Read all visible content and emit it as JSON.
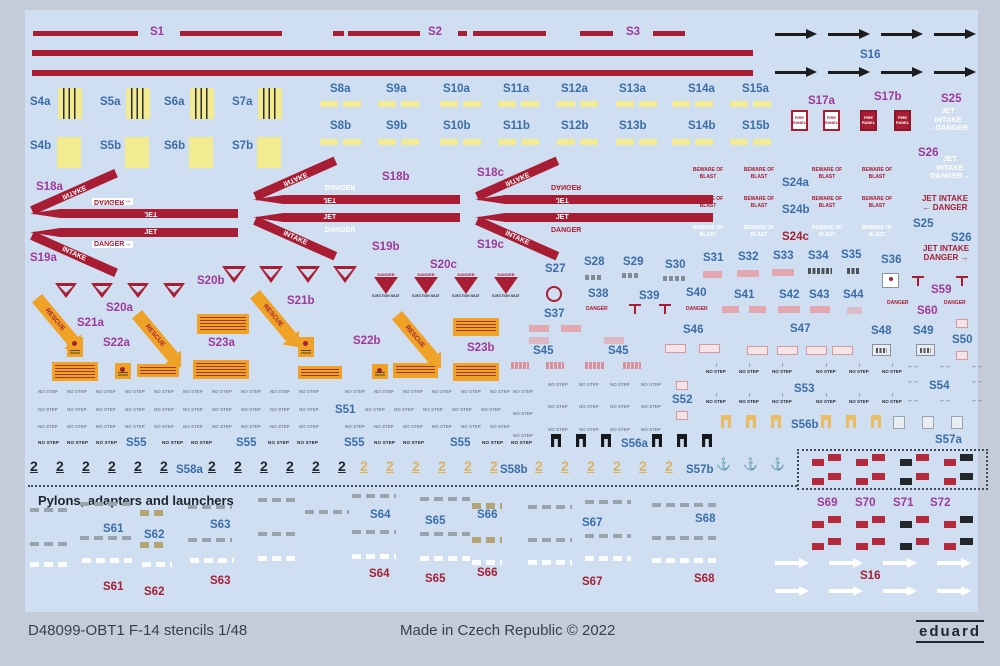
{
  "labels": {
    "s1": "S1",
    "s2": "S2",
    "s3": "S3",
    "s4a": "S4a",
    "s5a": "S5a",
    "s6a": "S6a",
    "s7a": "S7a",
    "s4b": "S4b",
    "s5b": "S5b",
    "s6b": "S6b",
    "s7b": "S7b",
    "s8a": "S8a",
    "s9a": "S9a",
    "s10a": "S10a",
    "s11a": "S11a",
    "s12a": "S12a",
    "s13a": "S13a",
    "s14a": "S14a",
    "s15a": "S15a",
    "s8b": "S8b",
    "s9b": "S9b",
    "s10b": "S10b",
    "s11b": "S11b",
    "s12b": "S12b",
    "s13b": "S13b",
    "s14b": "S14b",
    "s15b": "S15b",
    "s16": "S16",
    "s17a": "S17a",
    "s17b": "S17b",
    "s18a": "S18a",
    "s18b": "S18b",
    "s18c": "S18c",
    "s19a": "S19a",
    "s19b": "S19b",
    "s19c": "S19c",
    "s20a": "S20a",
    "s20b": "S20b",
    "s20c": "S20c",
    "s21a": "S21a",
    "s21b": "S21b",
    "s22a": "S22a",
    "s22b": "S22b",
    "s23a": "S23a",
    "s23b": "S23b",
    "s24a": "S24a",
    "s24b": "S24b",
    "s24c": "S24c",
    "s25": "S25",
    "s26": "S26",
    "s27": "S27",
    "s28": "S28",
    "s29": "S29",
    "s30": "S30",
    "s31": "S31",
    "s32": "S32",
    "s33": "S33",
    "s34": "S34",
    "s35": "S35",
    "s36": "S36",
    "s37": "S37",
    "s38": "S38",
    "s39": "S39",
    "s40": "S40",
    "s41": "S41",
    "s42": "S42",
    "s43": "S43",
    "s44": "S44",
    "s45": "S45",
    "s46": "S46",
    "s47": "S47",
    "s48": "S48",
    "s49": "S49",
    "s50": "S50",
    "s51": "S51",
    "s52": "S52",
    "s53": "S53",
    "s54": "S54",
    "s55": "S55",
    "s56a": "S56a",
    "s56b": "S56b",
    "s57a": "S57a",
    "s57b": "S57b",
    "s58a": "S58a",
    "s58b": "S58b",
    "s59": "S59",
    "s60": "S60",
    "s61": "S61",
    "s62": "S62",
    "s63": "S63",
    "s64": "S64",
    "s65": "S65",
    "s66": "S66",
    "s67": "S67",
    "s68": "S68",
    "s69": "S69",
    "s70": "S70",
    "s71": "S71",
    "s72": "S72"
  },
  "texts": {
    "fire_panel": "FIRE\nPANEL",
    "jet": "JET",
    "intake": "INTAKE",
    "danger": "DANGER",
    "danger_right": "DANGER→",
    "beware_of_blast": "BEWARE OF\nBLAST",
    "jid_w_left": "JET\nINTAKE\n←DANGER",
    "jid_w_right": "JET\nINTAKE\nDANGER→",
    "jid_r_left": "JET INTAKE\n← DANGER",
    "jid_r_right": "JET INTAKE\nDANGER →",
    "rescue": "RESCUE",
    "ejection_seat": "EJECTION SEAT",
    "no_step": "NO STEP",
    "two": "2",
    "dash_pair": "– –",
    "anchor_icon": "⚓"
  },
  "section": {
    "heading": "Pylons, adapters and launchers"
  },
  "footer": {
    "product_code": "D48099-OBT1 F-14 stencils 1/48",
    "made_in": "Made in Czech Republic © 2022",
    "brand": "eduard"
  },
  "colors": {
    "stripe_red": "#a81d33",
    "yellow": "#f2eb90",
    "orange": "#f0a227",
    "label_blue": "#3a6ea5",
    "label_magenta": "#9e3a96",
    "label_red": "#a32035",
    "sheet": "#cfdef1",
    "margin": "#c3ccd8"
  }
}
